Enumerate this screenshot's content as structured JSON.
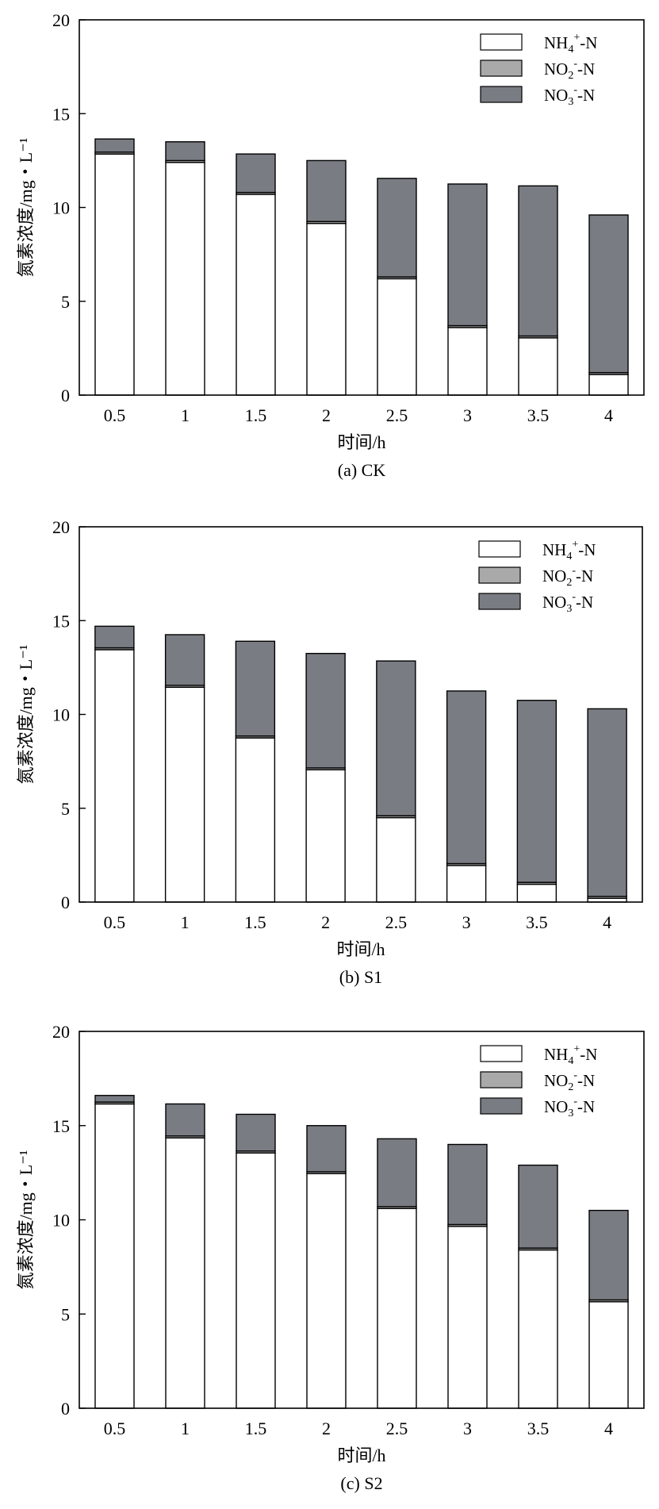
{
  "chart_data": [
    {
      "type": "bar",
      "stacked": true,
      "caption": "(a) CK",
      "xlabel": "时间/h",
      "ylabel": "氮素浓度/mg・L⁻¹",
      "categories": [
        "0.5",
        "1",
        "1.5",
        "2",
        "2.5",
        "3",
        "3.5",
        "4"
      ],
      "ylim": [
        0,
        20
      ],
      "yticks": [
        "0",
        "5",
        "10",
        "15",
        "20"
      ],
      "legend_position": "top-right",
      "series": [
        {
          "name": "NH4+-N",
          "label": {
            "base": "NH",
            "sub": "4",
            "sup": "+",
            "tail": "-N"
          },
          "color": "#ffffff",
          "values": [
            12.85,
            12.4,
            10.7,
            9.15,
            6.2,
            3.6,
            3.05,
            1.1
          ]
        },
        {
          "name": "NO2--N",
          "label": {
            "base": "NO",
            "sub": "2",
            "sup": "-",
            "tail": "-N"
          },
          "color": "#a9a9a9",
          "values": [
            0.1,
            0.1,
            0.1,
            0.1,
            0.1,
            0.1,
            0.1,
            0.1
          ]
        },
        {
          "name": "NO3--N",
          "label": {
            "base": "NO",
            "sub": "3",
            "sup": "-",
            "tail": "-N"
          },
          "color": "#7a7c83",
          "values": [
            0.7,
            1.0,
            2.05,
            3.25,
            5.25,
            7.55,
            8.0,
            8.4
          ]
        }
      ]
    },
    {
      "type": "bar",
      "stacked": true,
      "caption": "(b) S1",
      "xlabel": "时间/h",
      "ylabel": "氮素浓度/mg・L⁻¹",
      "categories": [
        "0.5",
        "1",
        "1.5",
        "2",
        "2.5",
        "3",
        "3.5",
        "4"
      ],
      "ylim": [
        0,
        20
      ],
      "yticks": [
        "0",
        "5",
        "10",
        "15",
        "20"
      ],
      "legend_position": "top-right",
      "series": [
        {
          "name": "NH4+-N",
          "label": {
            "base": "NH",
            "sub": "4",
            "sup": "+",
            "tail": "-N"
          },
          "color": "#ffffff",
          "values": [
            13.45,
            11.45,
            8.75,
            7.05,
            4.5,
            1.95,
            0.95,
            0.2
          ]
        },
        {
          "name": "NO2--N",
          "label": {
            "base": "NO",
            "sub": "2",
            "sup": "-",
            "tail": "-N"
          },
          "color": "#a9a9a9",
          "values": [
            0.1,
            0.1,
            0.1,
            0.1,
            0.1,
            0.1,
            0.1,
            0.1
          ]
        },
        {
          "name": "NO3--N",
          "label": {
            "base": "NO",
            "sub": "3",
            "sup": "-",
            "tail": "-N"
          },
          "color": "#7a7c83",
          "values": [
            1.15,
            2.7,
            5.05,
            6.1,
            8.25,
            9.2,
            9.7,
            10.0
          ]
        }
      ]
    },
    {
      "type": "bar",
      "stacked": true,
      "caption": "(c) S2",
      "xlabel": "时间/h",
      "ylabel": "氮素浓度/mg・L⁻¹",
      "categories": [
        "0.5",
        "1",
        "1.5",
        "2",
        "2.5",
        "3",
        "3.5",
        "4"
      ],
      "ylim": [
        0,
        20
      ],
      "yticks": [
        "0",
        "5",
        "10",
        "15",
        "20"
      ],
      "legend_position": "top-right",
      "series": [
        {
          "name": "NH4+-N",
          "label": {
            "base": "NH",
            "sub": "4",
            "sup": "+",
            "tail": "-N"
          },
          "color": "#ffffff",
          "values": [
            16.15,
            14.35,
            13.55,
            12.45,
            10.6,
            9.65,
            8.4,
            5.65
          ]
        },
        {
          "name": "NO2--N",
          "label": {
            "base": "NO",
            "sub": "2",
            "sup": "-",
            "tail": "-N"
          },
          "color": "#a9a9a9",
          "values": [
            0.1,
            0.1,
            0.1,
            0.1,
            0.1,
            0.1,
            0.1,
            0.1
          ]
        },
        {
          "name": "NO3--N",
          "label": {
            "base": "NO",
            "sub": "3",
            "sup": "-",
            "tail": "-N"
          },
          "color": "#7a7c83",
          "values": [
            0.35,
            1.7,
            1.95,
            2.45,
            3.6,
            4.25,
            4.4,
            4.75
          ]
        }
      ]
    }
  ]
}
